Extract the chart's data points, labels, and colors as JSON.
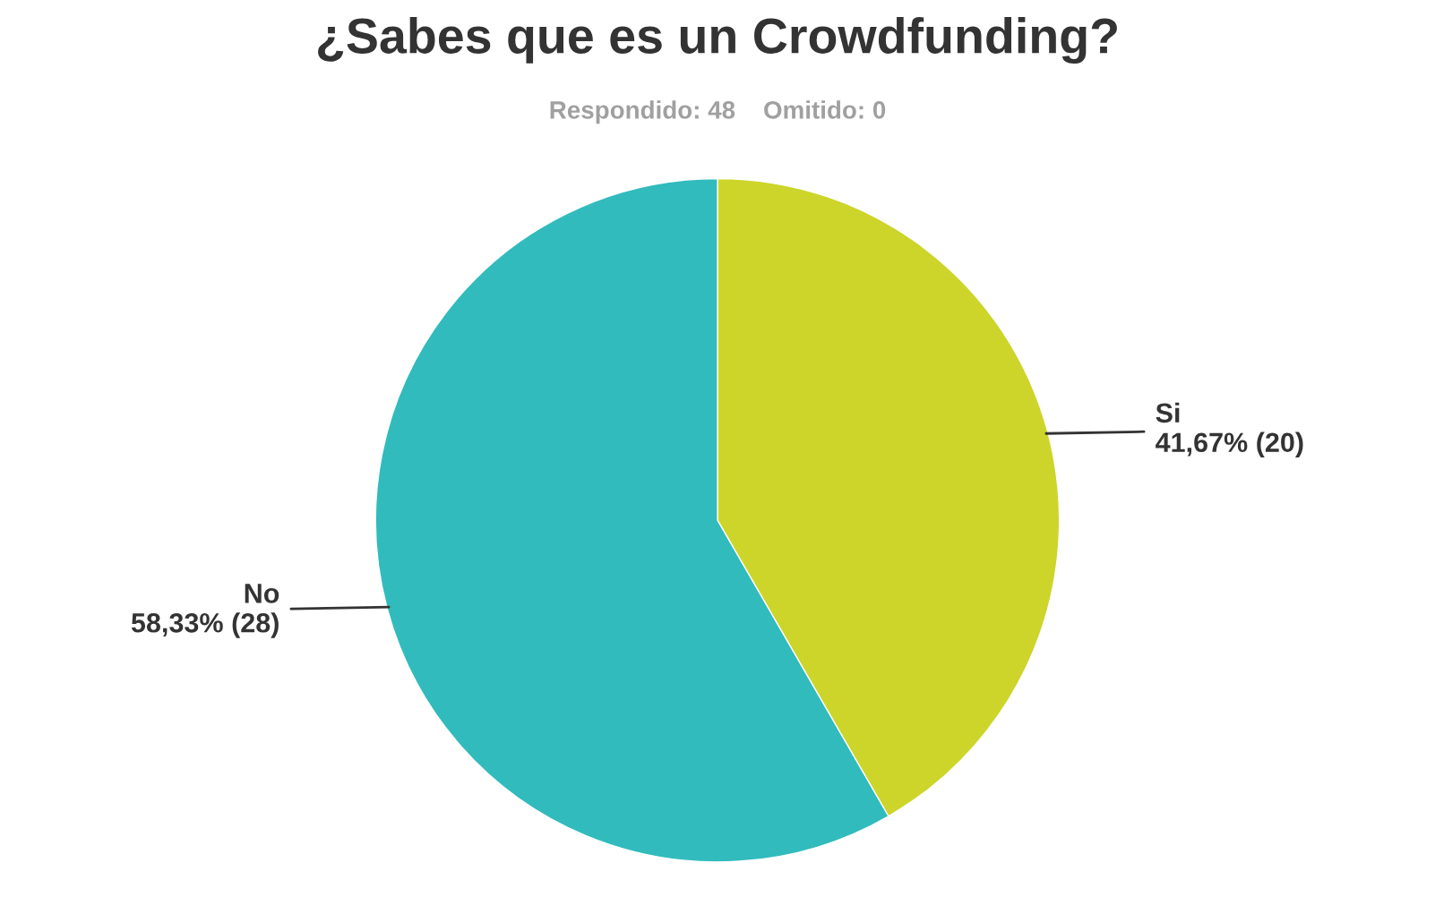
{
  "chart_data": {
    "type": "pie",
    "title": "¿Sabes que es un Crowdfunding?",
    "subtitle": "Respondido: 48    Omitido: 0",
    "categories": [
      "Si",
      "No"
    ],
    "values": [
      20,
      28
    ],
    "value_labels": [
      "41,67% (20)",
      "58,33% (28)"
    ],
    "colors": [
      "#cdd52a",
      "#31bbbd"
    ]
  }
}
